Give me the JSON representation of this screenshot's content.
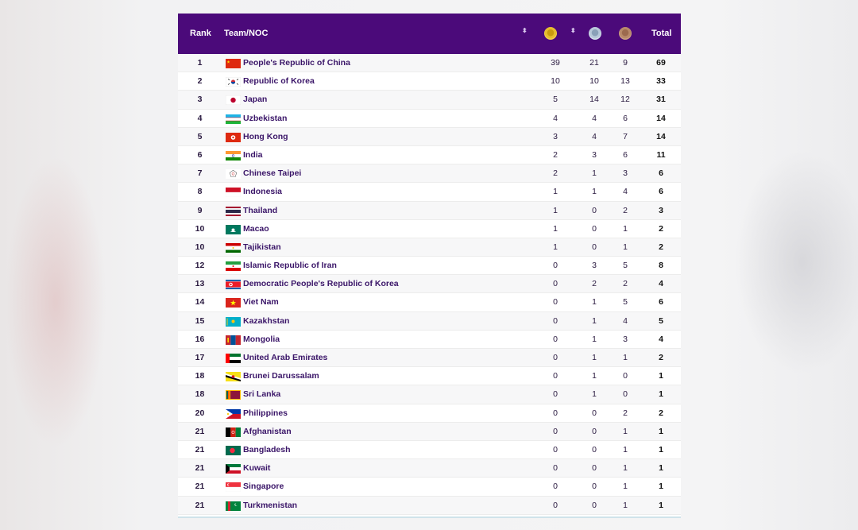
{
  "table": {
    "headers": {
      "rank": "Rank",
      "team": "Team/NOC",
      "total": "Total",
      "sort_glyph": "⬍"
    },
    "medal_icons": [
      "gold-medal-icon",
      "silver-medal-icon",
      "bronze-medal-icon"
    ],
    "colors": {
      "header_bg": "#4b0a7a",
      "name_text": "#3a1568"
    },
    "rows": [
      {
        "rank": "1",
        "name": "People's Republic of China",
        "flag": "china",
        "gold": "39",
        "silver": "21",
        "bronze": "9",
        "total": "69"
      },
      {
        "rank": "2",
        "name": "Republic of Korea",
        "flag": "korea",
        "gold": "10",
        "silver": "10",
        "bronze": "13",
        "total": "33"
      },
      {
        "rank": "3",
        "name": "Japan",
        "flag": "japan",
        "gold": "5",
        "silver": "14",
        "bronze": "12",
        "total": "31"
      },
      {
        "rank": "4",
        "name": "Uzbekistan",
        "flag": "uzbekistan",
        "gold": "4",
        "silver": "4",
        "bronze": "6",
        "total": "14"
      },
      {
        "rank": "5",
        "name": "Hong Kong",
        "flag": "hongkong",
        "gold": "3",
        "silver": "4",
        "bronze": "7",
        "total": "14"
      },
      {
        "rank": "6",
        "name": "India",
        "flag": "india",
        "gold": "2",
        "silver": "3",
        "bronze": "6",
        "total": "11"
      },
      {
        "rank": "7",
        "name": "Chinese Taipei",
        "flag": "taipei",
        "gold": "2",
        "silver": "1",
        "bronze": "3",
        "total": "6"
      },
      {
        "rank": "8",
        "name": "Indonesia",
        "flag": "indonesia",
        "gold": "1",
        "silver": "1",
        "bronze": "4",
        "total": "6"
      },
      {
        "rank": "9",
        "name": "Thailand",
        "flag": "thailand",
        "gold": "1",
        "silver": "0",
        "bronze": "2",
        "total": "3"
      },
      {
        "rank": "10",
        "name": "Macao",
        "flag": "macao",
        "gold": "1",
        "silver": "0",
        "bronze": "1",
        "total": "2"
      },
      {
        "rank": "10",
        "name": "Tajikistan",
        "flag": "tajikistan",
        "gold": "1",
        "silver": "0",
        "bronze": "1",
        "total": "2"
      },
      {
        "rank": "12",
        "name": "Islamic Republic of Iran",
        "flag": "iran",
        "gold": "0",
        "silver": "3",
        "bronze": "5",
        "total": "8"
      },
      {
        "rank": "13",
        "name": "Democratic People's Republic of Korea",
        "flag": "dprk",
        "gold": "0",
        "silver": "2",
        "bronze": "2",
        "total": "4"
      },
      {
        "rank": "14",
        "name": "Viet Nam",
        "flag": "vietnam",
        "gold": "0",
        "silver": "1",
        "bronze": "5",
        "total": "6"
      },
      {
        "rank": "15",
        "name": "Kazakhstan",
        "flag": "kazakhstan",
        "gold": "0",
        "silver": "1",
        "bronze": "4",
        "total": "5"
      },
      {
        "rank": "16",
        "name": "Mongolia",
        "flag": "mongolia",
        "gold": "0",
        "silver": "1",
        "bronze": "3",
        "total": "4"
      },
      {
        "rank": "17",
        "name": "United Arab Emirates",
        "flag": "uae",
        "gold": "0",
        "silver": "1",
        "bronze": "1",
        "total": "2"
      },
      {
        "rank": "18",
        "name": "Brunei Darussalam",
        "flag": "brunei",
        "gold": "0",
        "silver": "1",
        "bronze": "0",
        "total": "1"
      },
      {
        "rank": "18",
        "name": "Sri Lanka",
        "flag": "srilanka",
        "gold": "0",
        "silver": "1",
        "bronze": "0",
        "total": "1"
      },
      {
        "rank": "20",
        "name": "Philippines",
        "flag": "philippines",
        "gold": "0",
        "silver": "0",
        "bronze": "2",
        "total": "2"
      },
      {
        "rank": "21",
        "name": "Afghanistan",
        "flag": "afghanistan",
        "gold": "0",
        "silver": "0",
        "bronze": "1",
        "total": "1"
      },
      {
        "rank": "21",
        "name": "Bangladesh",
        "flag": "bangladesh",
        "gold": "0",
        "silver": "0",
        "bronze": "1",
        "total": "1"
      },
      {
        "rank": "21",
        "name": "Kuwait",
        "flag": "kuwait",
        "gold": "0",
        "silver": "0",
        "bronze": "1",
        "total": "1"
      },
      {
        "rank": "21",
        "name": "Singapore",
        "flag": "singapore",
        "gold": "0",
        "silver": "0",
        "bronze": "1",
        "total": "1"
      },
      {
        "rank": "21",
        "name": "Turkmenistan",
        "flag": "turkmenistan",
        "gold": "0",
        "silver": "0",
        "bronze": "1",
        "total": "1"
      }
    ]
  }
}
